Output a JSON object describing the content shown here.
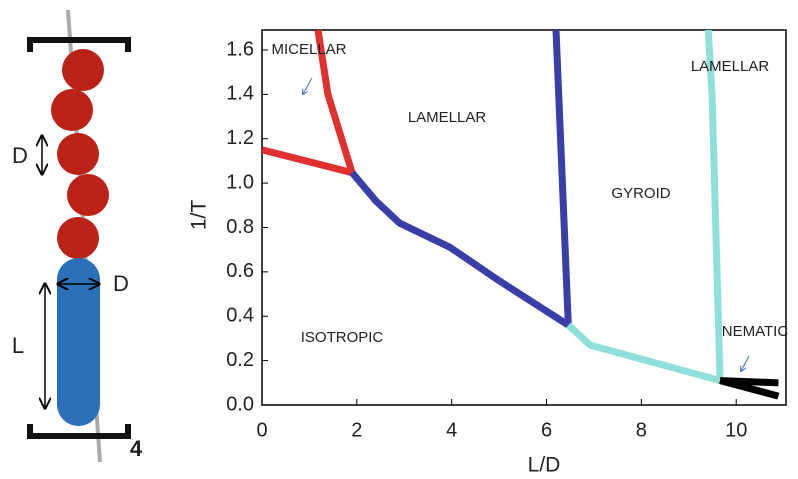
{
  "chart_data": {
    "type": "line",
    "xlabel": "L/D",
    "ylabel": "1/T",
    "xlim": [
      0,
      11.05
    ],
    "ylim": [
      0,
      1.69
    ],
    "xticks": [
      0,
      2,
      4,
      6,
      8,
      10
    ],
    "yticks": [
      {
        "value": 0,
        "label": "0.0"
      },
      0.2,
      0.4,
      0.6,
      0.8,
      {
        "value": 1,
        "label": "1.0"
      },
      1.2,
      1.4,
      1.6
    ],
    "series": [
      {
        "color": "#e03030",
        "x": [
          0,
          1.9,
          null,
          1.9,
          1.39,
          1.18
        ],
        "values": [
          1.15,
          1.047,
          null,
          1.047,
          1.4,
          1.69
        ]
      },
      {
        "color": "#3a3fa8",
        "x": [
          1.9,
          2.4,
          2.9,
          3.97,
          5,
          6.46,
          6.2
        ],
        "values": [
          1.047,
          0.92,
          0.82,
          0.71,
          0.56,
          0.36,
          1.69
        ]
      },
      {
        "color": "#8fe0d8",
        "x": [
          6.46,
          6.92,
          9.66,
          9.49,
          9.41
        ],
        "values": [
          0.36,
          0.27,
          0.11,
          1.4,
          1.69
        ]
      },
      {
        "color": "#000000",
        "x": [
          9.66,
          10.89,
          null,
          9.66,
          10.89
        ],
        "values": [
          0.11,
          0.1,
          null,
          0.11,
          0.04
        ]
      }
    ],
    "annotations": [
      "MICELLAR",
      "LAMELLAR",
      "GYROID",
      "LAMELLAR",
      "ISOTROPIC",
      "NEMATIC"
    ]
  },
  "schematic": {
    "bead_diameter_label": "D",
    "rod_diameter_label": "D",
    "rod_length_label": "L"
  },
  "figure_label": "4"
}
